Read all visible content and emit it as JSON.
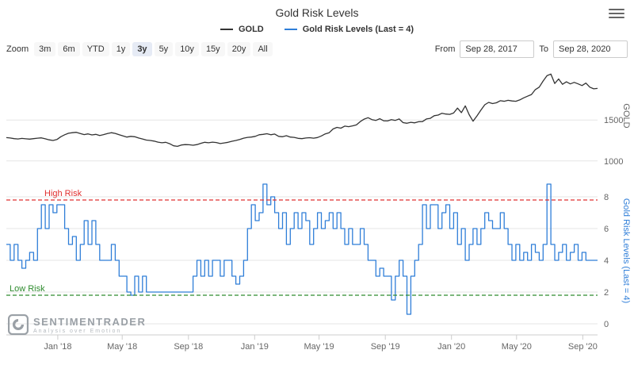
{
  "header": {
    "title": "Gold Risk Levels"
  },
  "legend": [
    {
      "label": "GOLD",
      "color": "#333333"
    },
    {
      "label": "Gold Risk Levels (Last = 4)",
      "color": "#2f7ed8"
    }
  ],
  "toolbar": {
    "zoom_label": "Zoom",
    "buttons": [
      "3m",
      "6m",
      "YTD",
      "1y",
      "3y",
      "5y",
      "10y",
      "15y",
      "20y",
      "All"
    ],
    "selected": "3y",
    "from_label": "From",
    "from_value": "Sep 28, 2017",
    "to_label": "To",
    "to_value": "Sep 28, 2020"
  },
  "watermark": {
    "name": "SENTIMENTRADER",
    "tagline": "Analysis over Emotion"
  },
  "xaxis": {
    "labels": [
      "Jan '18",
      "May '18",
      "Sep '18",
      "Jan '19",
      "May '19",
      "Sep '19",
      "Jan '20",
      "May '20",
      "Sep '20"
    ],
    "positions": [
      0.087,
      0.196,
      0.308,
      0.42,
      0.529,
      0.641,
      0.753,
      0.863,
      0.975
    ]
  },
  "chart_data": [
    {
      "type": "line",
      "name": "GOLD",
      "ylabel": "GOLD",
      "color": "#333333",
      "yticks": [
        1000,
        1500
      ],
      "ylim": [
        950,
        2150
      ],
      "x_range": [
        "Sep 28, 2017",
        "Sep 28, 2020"
      ],
      "x_unit": "weekly samples",
      "values": [
        1285,
        1280,
        1272,
        1268,
        1275,
        1270,
        1266,
        1272,
        1278,
        1282,
        1270,
        1258,
        1250,
        1262,
        1295,
        1320,
        1338,
        1345,
        1350,
        1335,
        1322,
        1330,
        1318,
        1325,
        1310,
        1322,
        1335,
        1345,
        1336,
        1320,
        1305,
        1292,
        1300,
        1295,
        1280,
        1268,
        1255,
        1250,
        1242,
        1230,
        1222,
        1228,
        1210,
        1185,
        1178,
        1195,
        1200,
        1198,
        1192,
        1200,
        1215,
        1228,
        1222,
        1230,
        1225,
        1212,
        1220,
        1228,
        1240,
        1250,
        1262,
        1278,
        1288,
        1292,
        1300,
        1320,
        1325,
        1332,
        1320,
        1328,
        1300,
        1295,
        1308,
        1292,
        1288,
        1276,
        1272,
        1280,
        1284,
        1278,
        1286,
        1305,
        1330,
        1345,
        1390,
        1410,
        1400,
        1425,
        1418,
        1428,
        1440,
        1480,
        1510,
        1528,
        1505,
        1495,
        1515,
        1490,
        1488,
        1505,
        1495,
        1512,
        1468,
        1460,
        1472,
        1465,
        1478,
        1480,
        1512,
        1520,
        1552,
        1560,
        1582,
        1572,
        1568,
        1585,
        1645,
        1590,
        1672,
        1565,
        1485,
        1550,
        1620,
        1685,
        1715,
        1700,
        1710,
        1735,
        1728,
        1740,
        1732,
        1728,
        1745,
        1770,
        1790,
        1810,
        1870,
        1900,
        1975,
        2040,
        2060,
        1945,
        2000,
        1935,
        1965,
        1940,
        1958,
        1940,
        1920,
        1950,
        1900,
        1880,
        1885
      ]
    },
    {
      "type": "line",
      "step": true,
      "name": "Gold Risk Levels",
      "ylabel": "Gold Risk Levels (Last = 4)",
      "color": "#2f7ed8",
      "last_value": 4,
      "yticks": [
        0,
        2,
        4,
        6,
        8
      ],
      "ylim": [
        0,
        9.2
      ],
      "high_risk": {
        "label": "High Risk",
        "value": 7.8,
        "color": "#e03030"
      },
      "low_risk": {
        "label": "Low Risk",
        "value": 1.8,
        "color": "#2e8b2e"
      },
      "x_unit": "weekly samples",
      "values": [
        5,
        4,
        5,
        4,
        3.5,
        4,
        4.5,
        4,
        6,
        7.5,
        6,
        7.5,
        7,
        7.5,
        7.5,
        6,
        5,
        5.5,
        4,
        5,
        6.5,
        5,
        6.5,
        5,
        4,
        4,
        4,
        5,
        4,
        3,
        3,
        2,
        1.8,
        3,
        2,
        3,
        2,
        2,
        2,
        2,
        2,
        2,
        2,
        2,
        2,
        2,
        2,
        2,
        3,
        4,
        3,
        4,
        3,
        4,
        4,
        3,
        4,
        4,
        3,
        2.5,
        3,
        4,
        6,
        7.5,
        6.5,
        7,
        8.8,
        7.5,
        8,
        7,
        6,
        7,
        5,
        6,
        7,
        6,
        7,
        6.5,
        5,
        6,
        7,
        6,
        6.5,
        7,
        6,
        7,
        6,
        5,
        6,
        5,
        5,
        6,
        5,
        4,
        4,
        3,
        3.5,
        3,
        3,
        1.5,
        3,
        4,
        3,
        0.6,
        3,
        4,
        5,
        7.5,
        6,
        7.5,
        7.5,
        6,
        7,
        7.5,
        6,
        7,
        5,
        6,
        4,
        5,
        6,
        5,
        6,
        7,
        6.5,
        6,
        6,
        7,
        6,
        5,
        4,
        5,
        4,
        4.5,
        4,
        5,
        4.5,
        4,
        5,
        8.8,
        5,
        4,
        4.5,
        5,
        4,
        4.5,
        5,
        4,
        4.5,
        4,
        4,
        4,
        4
      ]
    }
  ]
}
